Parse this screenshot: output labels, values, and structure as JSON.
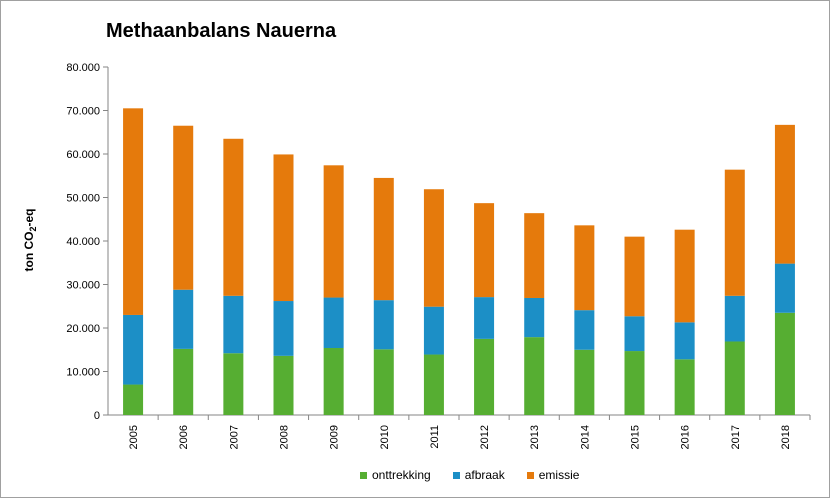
{
  "chart_data": {
    "type": "bar",
    "stacked": true,
    "title": "Methaanbalans Nauerna",
    "ylabel_main": "ton CO",
    "ylabel_sub": "2",
    "ylabel_tail": "-eq",
    "ylim": [
      0,
      80000
    ],
    "yticks": [
      "0",
      "10.000",
      "20.000",
      "30.000",
      "40.000",
      "50.000",
      "60.000",
      "70.000",
      "80.000"
    ],
    "grid": false,
    "legend_position": "bottom",
    "categories": [
      "2005",
      "2006",
      "2007",
      "2008",
      "2009",
      "2010",
      "2011",
      "2012",
      "2013",
      "2014",
      "2015",
      "2016",
      "2017",
      "2018"
    ],
    "series": [
      {
        "name": "onttrekking",
        "color": "#56ae32",
        "values": [
          7000,
          15200,
          14200,
          13600,
          15400,
          15100,
          13900,
          17500,
          17900,
          15000,
          14700,
          12800,
          16900,
          23500
        ]
      },
      {
        "name": "afbraak",
        "color": "#1c8fc6",
        "values": [
          16000,
          13600,
          13200,
          12600,
          11600,
          11300,
          11000,
          9600,
          9000,
          9100,
          8000,
          8500,
          10500,
          11300
        ]
      },
      {
        "name": "emissie",
        "color": "#e57a0c",
        "values": [
          47500,
          37700,
          36100,
          33700,
          30400,
          28100,
          27000,
          21600,
          19500,
          19500,
          18300,
          21300,
          29000,
          31900
        ]
      }
    ]
  }
}
